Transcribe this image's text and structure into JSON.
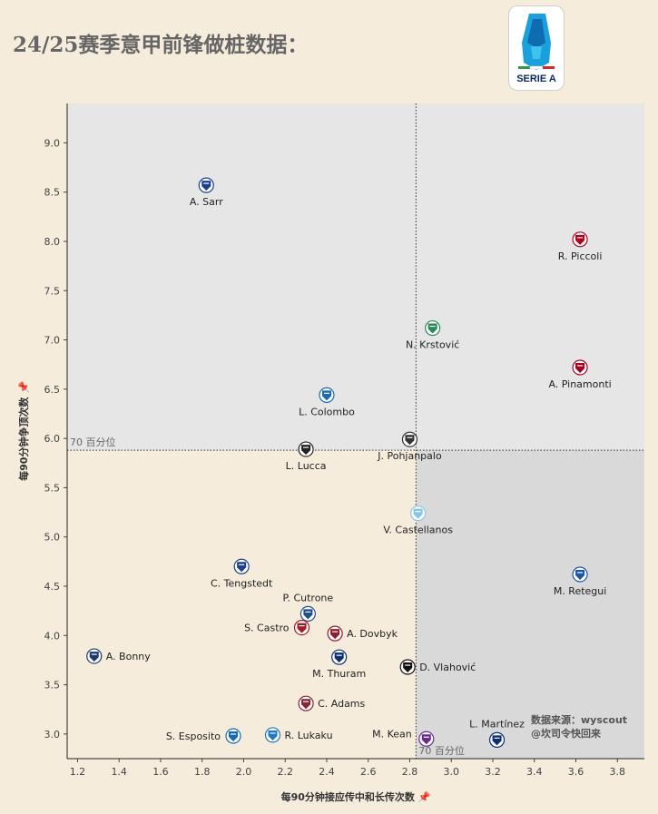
{
  "title": "24/25赛季意甲前锋做桩数据：",
  "logo": {
    "text": "SERIE A",
    "accent": "#1aa0dc"
  },
  "source": {
    "line1": "数据来源：wyscout",
    "line2": "@坎司令快回来"
  },
  "colors": {
    "background": "#f5ecdc",
    "quad_top": "#e6e6e6",
    "quad_bottom_right": "#d9d9d9",
    "quad_bottom_left": "#f5ecdc"
  },
  "chart_data": {
    "type": "scatter",
    "xlabel": "每90分钟接应传中和长传次数",
    "ylabel": "每90分钟争顶次数",
    "xlim": [
      1.15,
      3.93
    ],
    "ylim": [
      2.75,
      9.4
    ],
    "xticks": [
      "1.2",
      "1.4",
      "1.6",
      "1.8",
      "2.0",
      "2.2",
      "2.4",
      "2.6",
      "2.8",
      "3.0",
      "3.2",
      "3.4",
      "3.6",
      "3.8"
    ],
    "yticks": [
      "3.0",
      "3.5",
      "4.0",
      "4.5",
      "5.0",
      "5.5",
      "6.0",
      "6.5",
      "7.0",
      "7.5",
      "8.0",
      "8.5",
      "9.0"
    ],
    "x_percentile": {
      "value": 2.83,
      "label": "70 百分位"
    },
    "y_percentile": {
      "value": 5.88,
      "label": "70 百分位"
    },
    "grid": false,
    "points": [
      {
        "name": "A. Sarr",
        "x": 1.82,
        "y": 8.57,
        "team_icon": "hellas-verona-icon",
        "color": "#1c3f94",
        "label_pos": "below"
      },
      {
        "name": "R. Piccoli",
        "x": 3.62,
        "y": 8.02,
        "team_icon": "cagliari-icon",
        "color": "#b3001b",
        "label_pos": "below"
      },
      {
        "name": "N. Krstović",
        "x": 2.91,
        "y": 7.12,
        "team_icon": "lecce-icon",
        "color": "#2b8a5a",
        "label_pos": "below"
      },
      {
        "name": "A. Pinamonti",
        "x": 3.62,
        "y": 6.72,
        "team_icon": "genoa-icon",
        "color": "#a3001e",
        "label_pos": "below"
      },
      {
        "name": "L. Colombo",
        "x": 2.4,
        "y": 6.44,
        "team_icon": "empoli-icon",
        "color": "#1769b5",
        "label_pos": "below"
      },
      {
        "name": "J. Pohjanpalo",
        "x": 2.8,
        "y": 5.99,
        "team_icon": "venezia-icon",
        "color": "#333333",
        "label_pos": "below"
      },
      {
        "name": "L. Lucca",
        "x": 2.3,
        "y": 5.89,
        "team_icon": "udinese-icon",
        "color": "#222222",
        "label_pos": "below"
      },
      {
        "name": "V. Castellanos",
        "x": 2.84,
        "y": 5.24,
        "team_icon": "lazio-icon",
        "color": "#87c6ea",
        "label_pos": "below"
      },
      {
        "name": "C. Tengstedt",
        "x": 1.99,
        "y": 4.7,
        "team_icon": "hellas-verona-icon",
        "color": "#1c3f94",
        "label_pos": "below"
      },
      {
        "name": "M. Retegui",
        "x": 3.62,
        "y": 4.62,
        "team_icon": "atalanta-icon",
        "color": "#1a56a8",
        "label_pos": "below"
      },
      {
        "name": "P. Cutrone",
        "x": 2.31,
        "y": 4.22,
        "team_icon": "como-icon",
        "color": "#1f4f8f",
        "label_pos": "above"
      },
      {
        "name": "S. Castro",
        "x": 2.28,
        "y": 4.08,
        "team_icon": "bologna-icon",
        "color": "#a21c26",
        "label_pos": "left"
      },
      {
        "name": "A. Dovbyk",
        "x": 2.44,
        "y": 4.02,
        "team_icon": "roma-icon",
        "color": "#8e1f2f",
        "label_pos": "right"
      },
      {
        "name": "A. Bonny",
        "x": 1.28,
        "y": 3.79,
        "team_icon": "parma-icon",
        "color": "#1e3b6e",
        "label_pos": "right"
      },
      {
        "name": "M. Thuram",
        "x": 2.46,
        "y": 3.78,
        "team_icon": "inter-icon",
        "color": "#0b2e74",
        "label_pos": "below"
      },
      {
        "name": "D. Vlahović",
        "x": 2.79,
        "y": 3.68,
        "team_icon": "juventus-icon",
        "color": "#111111",
        "label_pos": "right"
      },
      {
        "name": "C. Adams",
        "x": 2.3,
        "y": 3.31,
        "team_icon": "torino-icon",
        "color": "#8a2432",
        "label_pos": "right"
      },
      {
        "name": "S. Esposito",
        "x": 1.95,
        "y": 2.98,
        "team_icon": "empoli-icon",
        "color": "#1769b5",
        "label_pos": "left"
      },
      {
        "name": "R. Lukaku",
        "x": 2.14,
        "y": 2.99,
        "team_icon": "napoli-icon",
        "color": "#1d78c8",
        "label_pos": "right"
      },
      {
        "name": "M. Kean",
        "x": 2.88,
        "y": 2.95,
        "team_icon": "fiorentina-icon",
        "color": "#6b2a8e",
        "label_pos": "upper-left"
      },
      {
        "name": "L. Martínez",
        "x": 3.22,
        "y": 2.94,
        "team_icon": "inter-icon",
        "color": "#0b2e74",
        "label_pos": "above"
      }
    ]
  }
}
